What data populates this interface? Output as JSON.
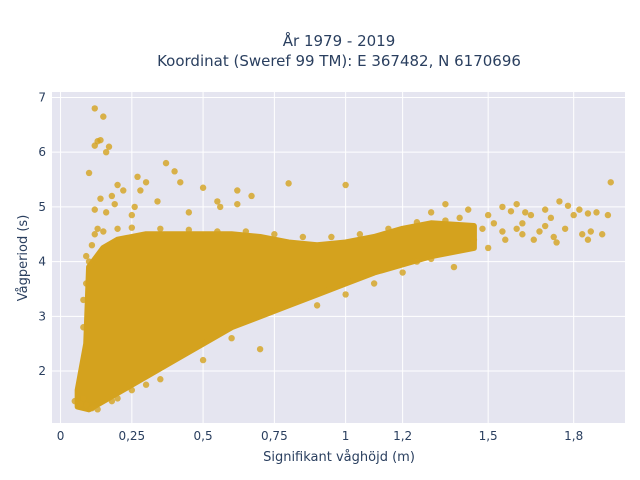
{
  "chart_data": {
    "type": "scatter",
    "title_line1": "År 1979 - 2019",
    "title_line2": "Koordinat (Sweref 99 TM): E 367482, N 6170696",
    "xlabel": "Signifikant våghöjd (m)",
    "ylabel": "Vågperiod (s)",
    "xlim": [
      -0.03,
      1.98
    ],
    "ylim": [
      1.05,
      7.1
    ],
    "x_ticks": [
      0,
      0.25,
      0.5,
      0.75,
      1,
      1.2,
      1.5,
      1.8
    ],
    "x_tick_labels": [
      "0",
      "0,25",
      "0,5",
      "0,75",
      "1",
      "1,2",
      "1,5",
      "1,8"
    ],
    "y_ticks": [
      2,
      3,
      4,
      5,
      6,
      7
    ],
    "y_tick_labels": [
      "2",
      "3",
      "4",
      "5",
      "6",
      "7"
    ],
    "grid": true,
    "marker_color": "#D4A21E",
    "plot_bg": "#E5E5F0",
    "density_band": {
      "lower": [
        [
          0.06,
          1.35
        ],
        [
          0.1,
          1.3
        ],
        [
          0.2,
          1.6
        ],
        [
          0.3,
          1.9
        ],
        [
          0.4,
          2.2
        ],
        [
          0.5,
          2.5
        ],
        [
          0.6,
          2.8
        ],
        [
          0.7,
          3.0
        ],
        [
          0.8,
          3.2
        ],
        [
          0.9,
          3.4
        ],
        [
          1.0,
          3.6
        ],
        [
          1.1,
          3.8
        ],
        [
          1.2,
          3.95
        ],
        [
          1.3,
          4.1
        ],
        [
          1.45,
          4.25
        ]
      ],
      "upper": [
        [
          0.06,
          1.65
        ],
        [
          0.09,
          2.5
        ],
        [
          0.1,
          3.9
        ],
        [
          0.15,
          4.25
        ],
        [
          0.2,
          4.4
        ],
        [
          0.3,
          4.5
        ],
        [
          0.4,
          4.5
        ],
        [
          0.5,
          4.5
        ],
        [
          0.6,
          4.5
        ],
        [
          0.7,
          4.45
        ],
        [
          0.8,
          4.35
        ],
        [
          0.9,
          4.3
        ],
        [
          1.0,
          4.35
        ],
        [
          1.1,
          4.45
        ],
        [
          1.2,
          4.6
        ],
        [
          1.3,
          4.7
        ],
        [
          1.45,
          4.65
        ]
      ]
    },
    "points": [
      [
        0.12,
        6.8
      ],
      [
        0.15,
        6.65
      ],
      [
        0.13,
        6.2
      ],
      [
        0.14,
        6.22
      ],
      [
        0.12,
        6.12
      ],
      [
        0.17,
        6.1
      ],
      [
        0.16,
        6.0
      ],
      [
        0.1,
        5.62
      ],
      [
        0.37,
        5.8
      ],
      [
        0.4,
        5.65
      ],
      [
        0.42,
        5.45
      ],
      [
        0.27,
        5.55
      ],
      [
        0.3,
        5.45
      ],
      [
        0.28,
        5.3
      ],
      [
        0.2,
        5.4
      ],
      [
        0.22,
        5.3
      ],
      [
        0.18,
        5.2
      ],
      [
        0.14,
        5.15
      ],
      [
        0.19,
        5.05
      ],
      [
        0.26,
        5.0
      ],
      [
        0.34,
        5.1
      ],
      [
        0.5,
        5.35
      ],
      [
        0.62,
        5.3
      ],
      [
        0.8,
        5.43
      ],
      [
        1.0,
        5.4
      ],
      [
        0.55,
        5.1
      ],
      [
        0.67,
        5.2
      ],
      [
        0.62,
        5.05
      ],
      [
        0.25,
        4.85
      ],
      [
        0.12,
        4.95
      ],
      [
        0.16,
        4.9
      ],
      [
        0.45,
        4.9
      ],
      [
        0.56,
        5.0
      ],
      [
        1.3,
        4.9
      ],
      [
        1.35,
        5.05
      ],
      [
        1.43,
        4.95
      ],
      [
        1.5,
        4.85
      ],
      [
        1.55,
        5.0
      ],
      [
        1.58,
        4.92
      ],
      [
        1.6,
        5.05
      ],
      [
        1.63,
        4.9
      ],
      [
        1.65,
        4.85
      ],
      [
        1.7,
        4.95
      ],
      [
        1.72,
        4.8
      ],
      [
        1.75,
        5.1
      ],
      [
        1.78,
        5.02
      ],
      [
        1.8,
        4.85
      ],
      [
        1.82,
        4.95
      ],
      [
        1.85,
        4.88
      ],
      [
        1.88,
        4.9
      ],
      [
        1.93,
        5.45
      ],
      [
        1.92,
        4.85
      ],
      [
        1.6,
        4.6
      ],
      [
        1.62,
        4.7
      ],
      [
        1.68,
        4.55
      ],
      [
        1.73,
        4.45
      ],
      [
        1.77,
        4.6
      ],
      [
        1.83,
        4.5
      ],
      [
        1.86,
        4.55
      ],
      [
        1.9,
        4.5
      ],
      [
        1.66,
        4.4
      ],
      [
        1.74,
        4.35
      ],
      [
        1.85,
        4.4
      ],
      [
        1.55,
        4.55
      ],
      [
        1.5,
        4.25
      ],
      [
        1.45,
        4.4
      ],
      [
        1.38,
        3.9
      ],
      [
        1.3,
        4.05
      ],
      [
        1.25,
        4.0
      ],
      [
        1.52,
        4.7
      ],
      [
        1.48,
        4.6
      ],
      [
        1.42,
        4.65
      ],
      [
        1.56,
        4.4
      ],
      [
        1.62,
        4.5
      ],
      [
        1.7,
        4.65
      ],
      [
        0.7,
        2.4
      ],
      [
        0.5,
        2.2
      ],
      [
        0.35,
        1.85
      ],
      [
        0.3,
        1.75
      ],
      [
        0.25,
        1.65
      ],
      [
        0.2,
        1.5
      ],
      [
        0.18,
        1.45
      ],
      [
        0.08,
        1.5
      ],
      [
        0.05,
        1.45
      ],
      [
        0.07,
        1.4
      ],
      [
        0.09,
        1.38
      ],
      [
        0.11,
        1.32
      ],
      [
        0.13,
        1.3
      ],
      [
        0.08,
        2.8
      ],
      [
        0.08,
        3.3
      ],
      [
        0.09,
        3.6
      ],
      [
        0.1,
        4.0
      ],
      [
        0.09,
        4.1
      ],
      [
        0.11,
        4.3
      ],
      [
        0.12,
        4.5
      ],
      [
        0.13,
        4.6
      ],
      [
        0.15,
        4.55
      ],
      [
        0.2,
        4.6
      ],
      [
        0.25,
        4.62
      ],
      [
        0.35,
        4.6
      ],
      [
        0.45,
        4.58
      ],
      [
        0.55,
        4.55
      ],
      [
        0.65,
        4.55
      ],
      [
        0.75,
        4.5
      ],
      [
        0.85,
        4.45
      ],
      [
        0.95,
        4.45
      ],
      [
        1.05,
        4.5
      ],
      [
        1.15,
        4.6
      ],
      [
        1.25,
        4.72
      ],
      [
        1.35,
        4.75
      ],
      [
        1.4,
        4.8
      ],
      [
        0.9,
        3.2
      ],
      [
        1.0,
        3.4
      ],
      [
        1.1,
        3.6
      ],
      [
        1.2,
        3.8
      ],
      [
        0.6,
        2.6
      ]
    ]
  }
}
